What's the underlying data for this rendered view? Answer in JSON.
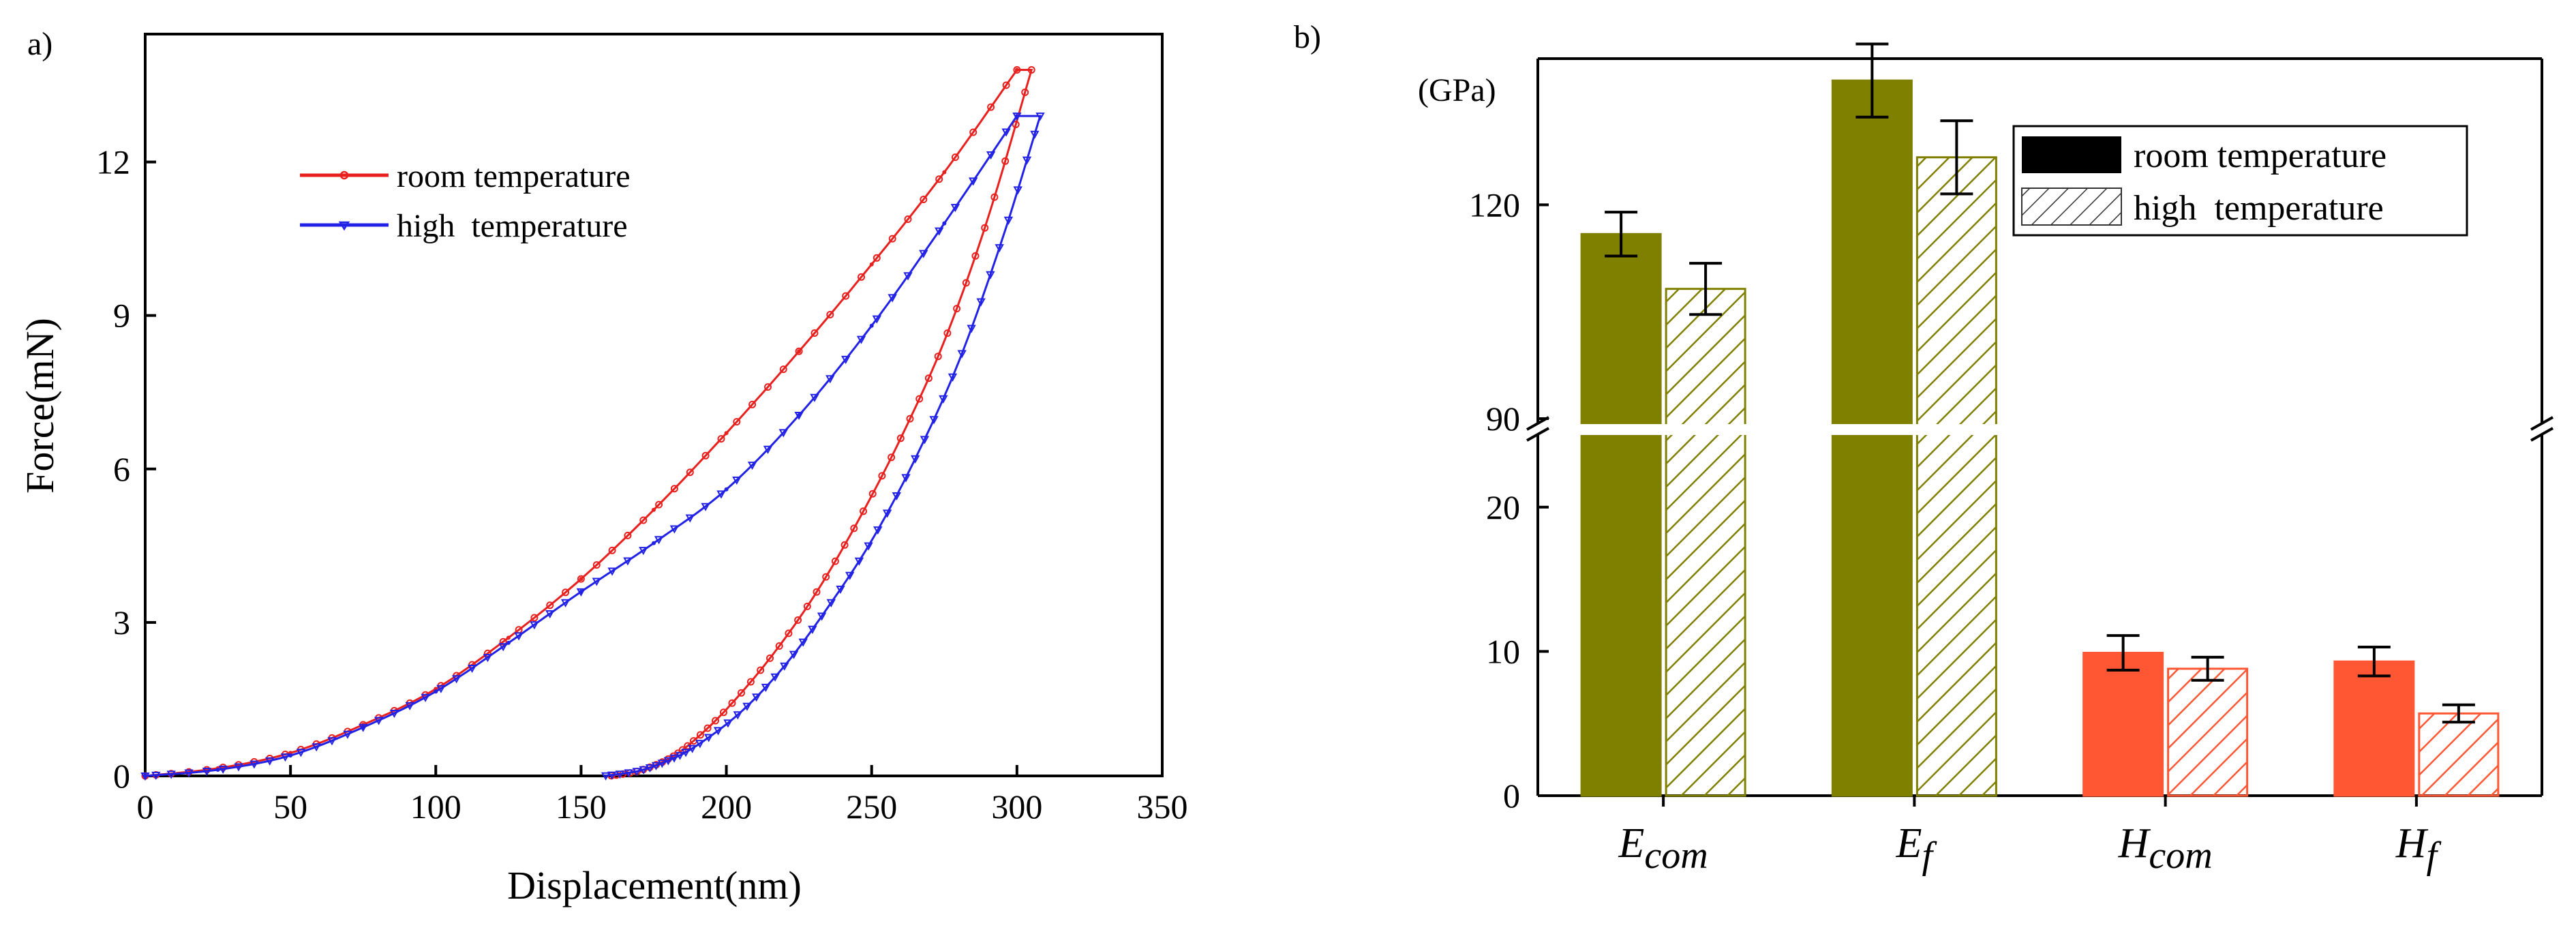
{
  "chart_data": [
    {
      "panel_label": "a)",
      "type": "line",
      "xlabel": "Displacement(nm)",
      "ylabel": "Force(mN)",
      "xlim": [
        0,
        350
      ],
      "ylim": [
        0,
        14.5
      ],
      "xticks": [
        0,
        50,
        100,
        150,
        200,
        250,
        300,
        350
      ],
      "yticks": [
        0,
        3,
        6,
        9,
        12
      ],
      "grid": false,
      "legend_position": "top-left",
      "series": [
        {
          "name": "room temperature",
          "color": "#e8201e",
          "marker": "circle",
          "loading_x": [
            0,
            25,
            50,
            75,
            100,
            125,
            150,
            175,
            200,
            225,
            250,
            275,
            300
          ],
          "loading_y": [
            0,
            0.15,
            0.45,
            1.0,
            1.7,
            2.7,
            3.85,
            5.2,
            6.7,
            8.3,
            10.0,
            11.8,
            13.8
          ],
          "hold": [
            [
              300,
              13.8
            ],
            [
              305,
              13.8
            ]
          ],
          "unloading_x": [
            305,
            290,
            275,
            260,
            245,
            230,
            215,
            200,
            188,
            180,
            170,
            160
          ],
          "unloading_y": [
            13.8,
            10.9,
            8.5,
            6.6,
            4.95,
            3.5,
            2.3,
            1.3,
            0.65,
            0.33,
            0.1,
            0
          ]
        },
        {
          "name": "high  temperature",
          "color": "#2222e6",
          "marker": "triangle",
          "loading_x": [
            0,
            25,
            50,
            75,
            100,
            125,
            150,
            175,
            200,
            225,
            250,
            275,
            300
          ],
          "loading_y": [
            0,
            0.12,
            0.4,
            0.95,
            1.65,
            2.6,
            3.6,
            4.55,
            5.6,
            7.05,
            8.8,
            10.8,
            12.9
          ],
          "hold": [
            [
              300,
              12.9
            ],
            [
              308,
              12.9
            ]
          ],
          "unloading_x": [
            308,
            295,
            280,
            265,
            250,
            235,
            220,
            205,
            190,
            180,
            170,
            158
          ],
          "unloading_y": [
            12.9,
            10.5,
            8.1,
            6.2,
            4.6,
            3.3,
            2.15,
            1.25,
            0.6,
            0.3,
            0.1,
            0
          ]
        }
      ]
    },
    {
      "panel_label": "b)",
      "type": "bar",
      "unit_label": "(GPa)",
      "categories": [
        "E",
        "E",
        "H",
        "H"
      ],
      "category_subscripts": [
        "com",
        "f",
        "com",
        "f"
      ],
      "broken_axis": {
        "lower_range": [
          0,
          25
        ],
        "upper_range": [
          90,
          140
        ],
        "lower_ticks": [
          0,
          10,
          20
        ],
        "upper_ticks": [
          90,
          120
        ]
      },
      "legend_position": "top-right",
      "series": [
        {
          "name": "room temperature",
          "fill": "solid",
          "values": [
            116,
            137,
            9.9,
            9.3
          ],
          "errors": [
            3,
            5,
            1.2,
            1.0
          ],
          "colors": [
            "#7f7f00",
            "#7f7f00",
            "#ff5733",
            "#ff5733"
          ]
        },
        {
          "name": "high  temperature",
          "fill": "hatched",
          "values": [
            108.5,
            126.5,
            8.8,
            5.7
          ],
          "errors": [
            3.5,
            5,
            0.8,
            0.6
          ],
          "colors": [
            "#7f7f00",
            "#7f7f00",
            "#ff5733",
            "#ff5733"
          ]
        }
      ]
    }
  ]
}
